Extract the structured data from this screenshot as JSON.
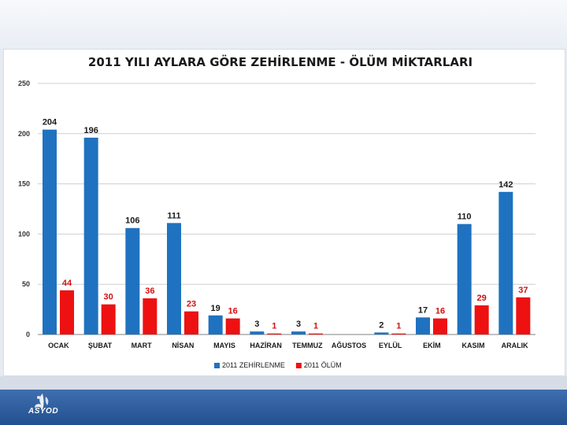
{
  "chart_data": {
    "type": "bar",
    "title": "2011 YILI AYLARA GÖRE ZEHİRLENME - ÖLÜM MİKTARLARI",
    "categories": [
      "OCAK",
      "ŞUBAT",
      "MART",
      "NİSAN",
      "MAYIS",
      "HAZİRAN",
      "TEMMUZ",
      "AĞUSTOS",
      "EYLÜL",
      "EKİM",
      "KASIM",
      "ARALIK"
    ],
    "series": [
      {
        "name": "2011 ZEHİRLENME",
        "color": "#1f72c0",
        "label_color": "#1a1a1a",
        "values": [
          204,
          196,
          106,
          111,
          19,
          3,
          3,
          null,
          2,
          17,
          110,
          142
        ]
      },
      {
        "name": "2011 ÖLÜM",
        "color": "#ee1111",
        "label_color": "#d41010",
        "values": [
          44,
          30,
          36,
          23,
          16,
          1,
          1,
          null,
          1,
          16,
          29,
          37
        ]
      }
    ],
    "ylim": [
      0,
      250
    ],
    "yticks": [
      0,
      50,
      100,
      150,
      200,
      250
    ],
    "grid": true,
    "legend_position": "bottom"
  },
  "footer": {
    "logo_text": "ASYOD"
  }
}
